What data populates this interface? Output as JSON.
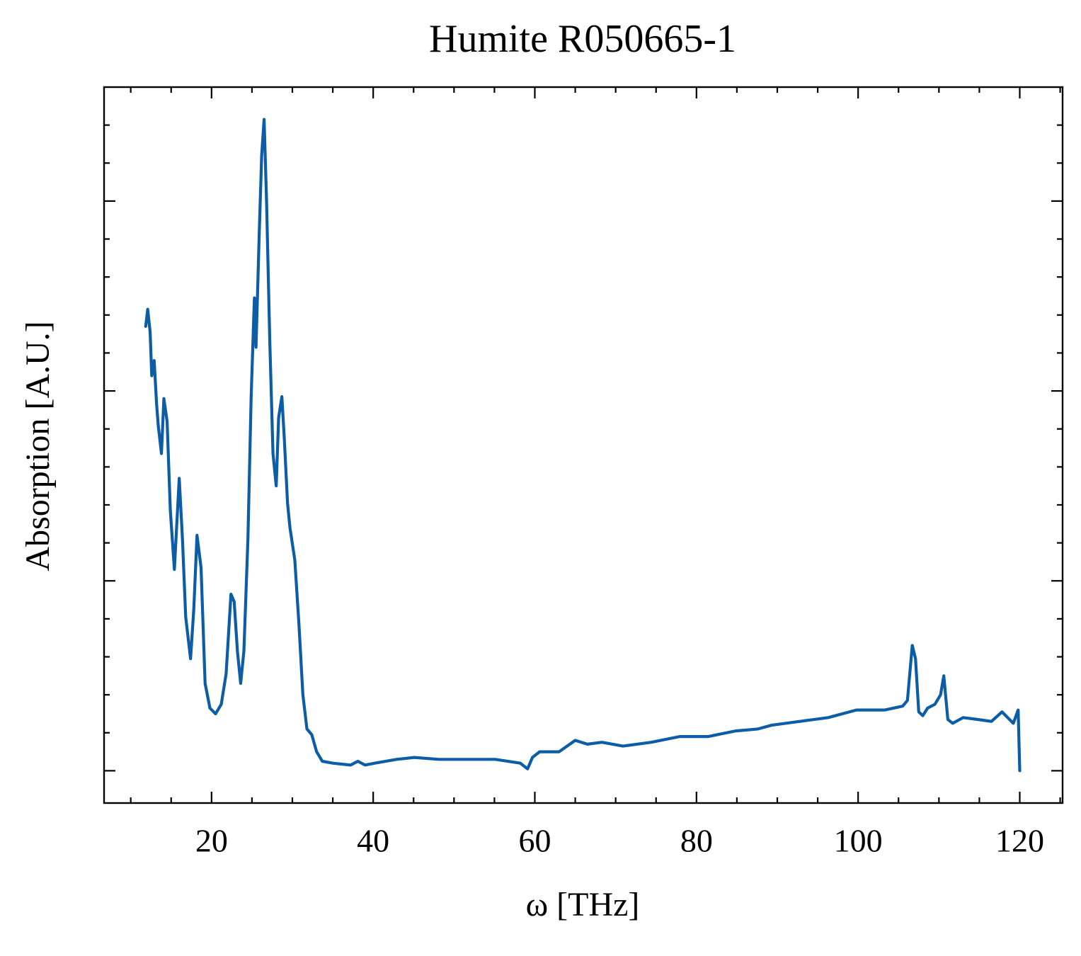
{
  "chart_data": {
    "type": "line",
    "title": "Humite R050665-1",
    "x_label": "ω [THz]",
    "y_label": "Absorption [A.U.]",
    "xlim": [
      6.7,
      125.3
    ],
    "ylim": [
      -0.17,
      3.6
    ],
    "xticks": [
      20,
      40,
      60,
      80,
      100,
      120
    ],
    "yticks": [
      0,
      1,
      2,
      3
    ],
    "xminorticks": [
      10,
      15,
      25,
      30,
      35,
      45,
      50,
      55,
      65,
      70,
      75,
      85,
      90,
      95,
      105,
      110,
      115,
      125
    ],
    "yminorticks": [
      -0.2,
      0.2,
      0.4,
      0.6,
      0.8,
      1.2,
      1.4,
      1.6,
      1.8,
      2.2,
      2.4,
      2.6,
      2.8,
      3.2,
      3.4
    ],
    "grid": false,
    "x": [
      11.85,
      12.1,
      12.4,
      12.6,
      12.9,
      13.2,
      13.4,
      13.8,
      14.1,
      14.5,
      14.9,
      15.4,
      16.0,
      16.4,
      16.8,
      17.4,
      17.8,
      18.2,
      18.7,
      19.2,
      19.8,
      20.5,
      21.2,
      21.8,
      22.4,
      22.8,
      23.2,
      23.6,
      24.0,
      24.5,
      24.9,
      25.3,
      25.5,
      25.9,
      26.2,
      26.5,
      26.8,
      27.2,
      27.6,
      28.0,
      28.3,
      28.7,
      29.0,
      29.4,
      29.7,
      30.3,
      30.8,
      31.3,
      31.8,
      32.4,
      33.0,
      33.7,
      35.0,
      37.2,
      38.1,
      39.0,
      40.2,
      42.9,
      45.1,
      48.1,
      51.6,
      55.1,
      58.2,
      59.1,
      59.7,
      60.6,
      63.0,
      65.0,
      66.5,
      68.3,
      70.9,
      74.4,
      77.9,
      81.4,
      84.9,
      87.6,
      89.3,
      92.8,
      96.3,
      99.8,
      103.3,
      105.5,
      106.1,
      106.7,
      107.1,
      107.5,
      108.0,
      108.6,
      109.5,
      110.2,
      110.6,
      111.1,
      111.7,
      113.0,
      114.8,
      116.5,
      117.8,
      119.2,
      119.8,
      120.0
    ],
    "series": [
      {
        "name": "Humite R050665-1",
        "color": "#0c5da5",
        "values": [
          2.34,
          2.43,
          2.31,
          2.08,
          2.16,
          1.93,
          1.82,
          1.67,
          1.96,
          1.84,
          1.37,
          1.06,
          1.54,
          1.22,
          0.81,
          0.59,
          0.85,
          1.24,
          1.07,
          0.46,
          0.33,
          0.3,
          0.35,
          0.51,
          0.93,
          0.89,
          0.63,
          0.46,
          0.63,
          1.22,
          1.97,
          2.49,
          2.23,
          2.83,
          3.24,
          3.43,
          3.01,
          2.27,
          1.67,
          1.5,
          1.86,
          1.97,
          1.75,
          1.41,
          1.28,
          1.11,
          0.78,
          0.4,
          0.22,
          0.19,
          0.1,
          0.05,
          0.04,
          0.03,
          0.05,
          0.03,
          0.04,
          0.06,
          0.07,
          0.06,
          0.06,
          0.06,
          0.04,
          0.01,
          0.07,
          0.1,
          0.1,
          0.16,
          0.14,
          0.15,
          0.13,
          0.15,
          0.18,
          0.18,
          0.21,
          0.22,
          0.24,
          0.26,
          0.28,
          0.32,
          0.32,
          0.34,
          0.37,
          0.66,
          0.59,
          0.31,
          0.29,
          0.33,
          0.35,
          0.4,
          0.5,
          0.27,
          0.25,
          0.28,
          0.27,
          0.26,
          0.31,
          0.25,
          0.32,
          0.0
        ]
      }
    ]
  }
}
